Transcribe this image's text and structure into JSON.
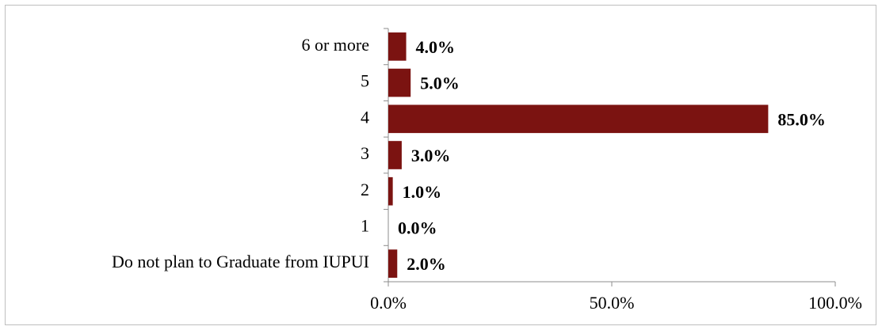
{
  "chart_data": {
    "type": "barh",
    "categories": [
      "6 or more",
      "5",
      "4",
      "3",
      "2",
      "1",
      "Do not plan to Graduate from IUPUI"
    ],
    "values": [
      4,
      5,
      85,
      3,
      1,
      0,
      2
    ],
    "value_labels": [
      "4.0%",
      "5.0%",
      "85.0%",
      "3.0%",
      "1.0%",
      "0.0%",
      "2.0%"
    ],
    "color": "#7b1311",
    "xlim": [
      0,
      100
    ],
    "xticks": [
      {
        "value": 0,
        "label": "0.0%"
      },
      {
        "value": 50,
        "label": "50.0%"
      },
      {
        "value": 100,
        "label": "100.0%"
      }
    ],
    "grid": false
  }
}
